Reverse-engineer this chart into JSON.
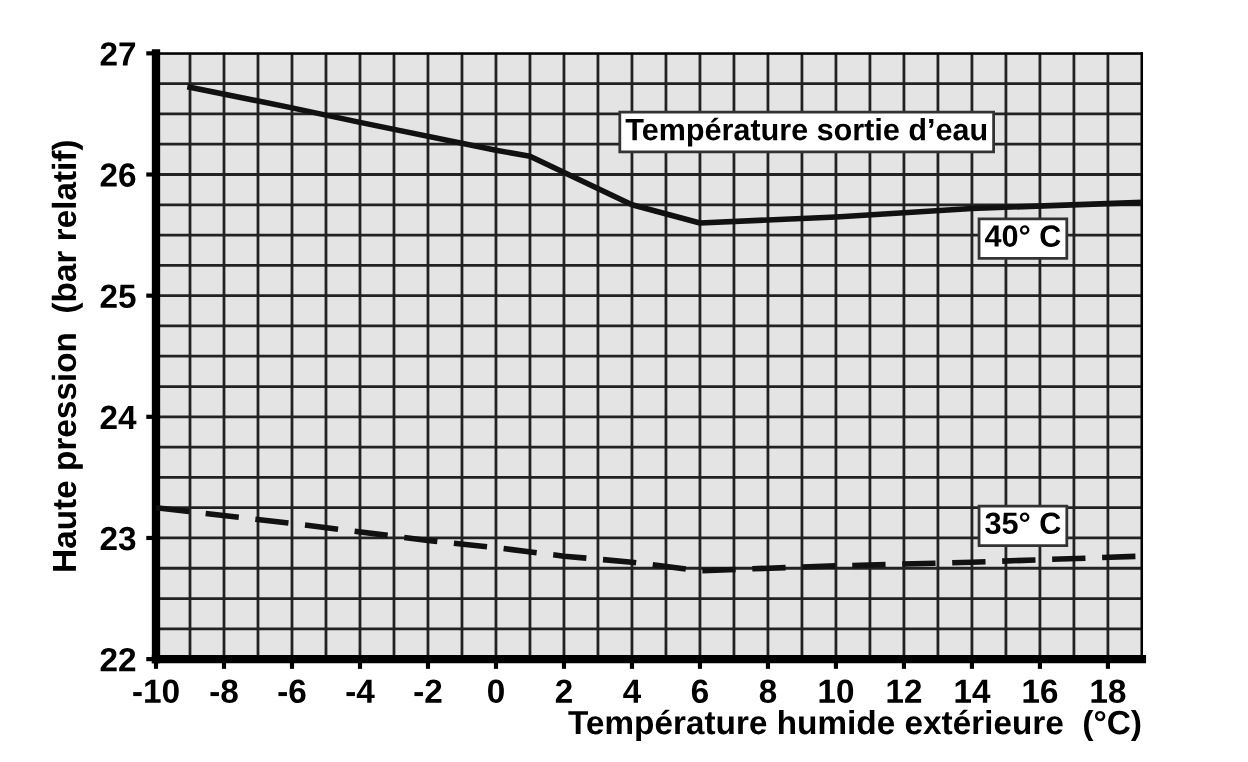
{
  "chart_data": {
    "type": "line",
    "xlabel": "Température humide extérieure  (°C)",
    "ylabel": "Haute pression  (bar relatif)",
    "legend_title": "Température sortie d’eau",
    "series": [
      {
        "name": "40° C",
        "color": "#111111",
        "line_style": "solid",
        "x": [
          -9,
          -6,
          -4,
          0,
          1,
          4,
          6,
          10,
          14,
          19
        ],
        "values": [
          26.72,
          26.55,
          26.43,
          26.2,
          26.15,
          25.75,
          25.6,
          25.65,
          25.72,
          25.77
        ]
      },
      {
        "name": "35° C",
        "color": "#111111",
        "line_style": "dashed",
        "x": [
          -10,
          -6,
          -2,
          0,
          2,
          4,
          6,
          10,
          14,
          19
        ],
        "values": [
          23.25,
          23.12,
          22.98,
          22.92,
          22.85,
          22.8,
          22.73,
          22.77,
          22.8,
          22.85
        ]
      }
    ],
    "xlim": [
      -10,
      19
    ],
    "ylim": [
      22,
      27
    ],
    "xticks": [
      -10,
      -8,
      -6,
      -4,
      -2,
      0,
      2,
      4,
      6,
      8,
      10,
      12,
      14,
      16,
      18
    ],
    "yticks": [
      22,
      23,
      24,
      25,
      26,
      27
    ],
    "grid": true,
    "legend": false,
    "marker": "none"
  }
}
